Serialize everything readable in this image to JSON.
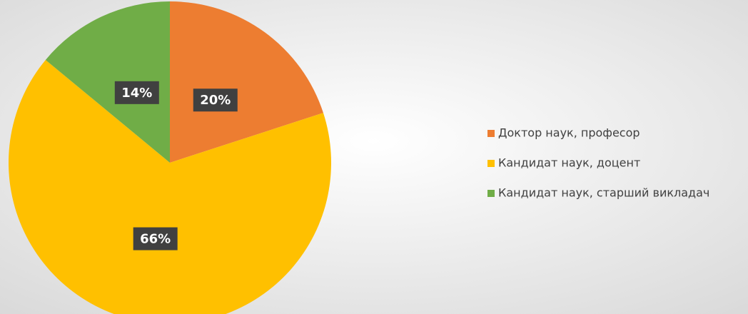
{
  "chart_data": {
    "type": "pie",
    "categories": [
      "Доктор наук, професор",
      "Кандидат наук, доцент",
      "Кандидат наук, старший викладач"
    ],
    "values": [
      20,
      66,
      14
    ],
    "value_labels": [
      "20%",
      "66%",
      "14%"
    ],
    "colors": [
      "#ed7d31",
      "#ffc000",
      "#70ad47"
    ],
    "legend": "right"
  }
}
